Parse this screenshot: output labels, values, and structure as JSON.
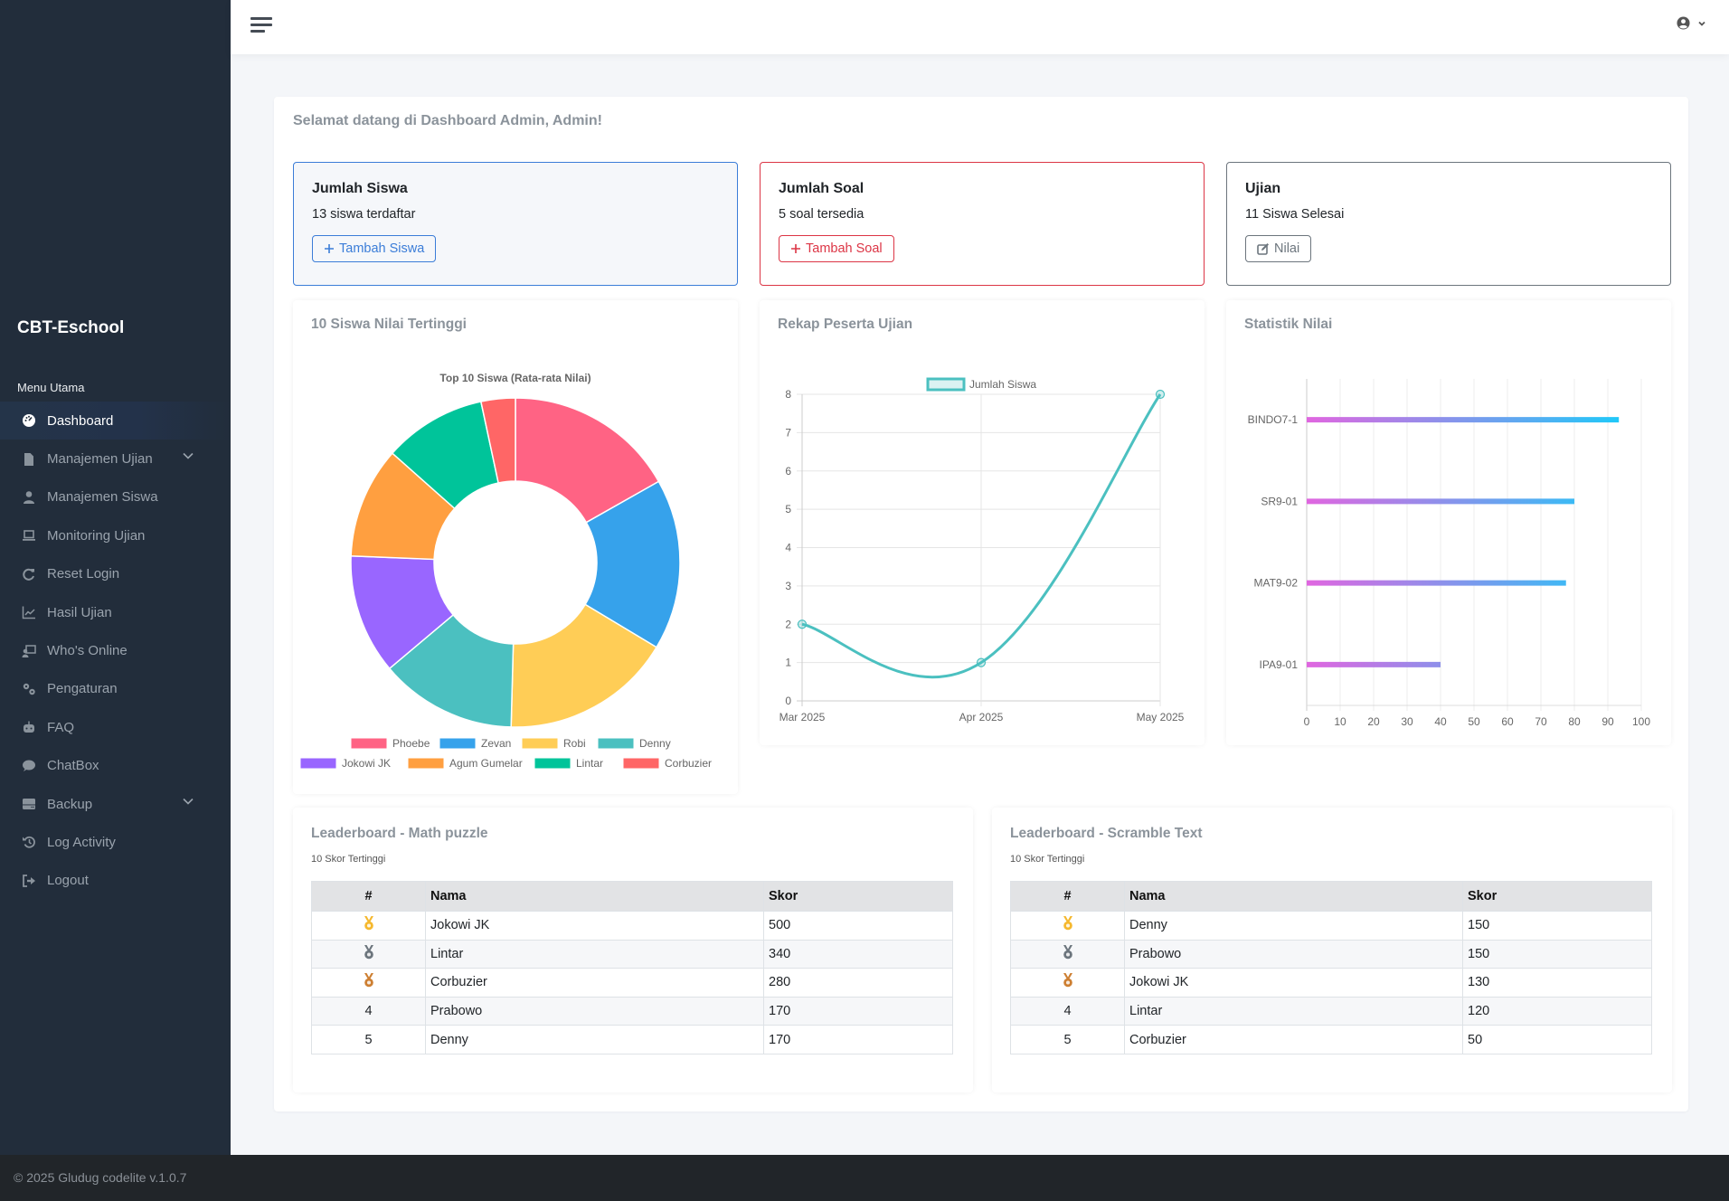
{
  "app": {
    "brand": "CBT-Eschool",
    "footer": "© 2025 Gludug codelite v.1.0.7"
  },
  "sidebar": {
    "section_title": "Menu Utama",
    "items": [
      {
        "label": "Dashboard",
        "icon": "tachometer-icon",
        "active": true
      },
      {
        "label": "Manajemen Ujian",
        "icon": "file-icon",
        "has_submenu": true
      },
      {
        "label": "Manajemen Siswa",
        "icon": "user-icon"
      },
      {
        "label": "Monitoring Ujian",
        "icon": "laptop-icon"
      },
      {
        "label": "Reset Login",
        "icon": "redo-icon"
      },
      {
        "label": "Hasil Ujian",
        "icon": "chart-line-icon"
      },
      {
        "label": "Who's Online",
        "icon": "chalkboard-user-icon"
      },
      {
        "label": "Pengaturan",
        "icon": "gears-icon"
      },
      {
        "label": "FAQ",
        "icon": "robot-icon"
      },
      {
        "label": "ChatBox",
        "icon": "comment-icon"
      },
      {
        "label": "Backup",
        "icon": "hdd-icon",
        "has_submenu": true
      },
      {
        "label": "Log Activity",
        "icon": "history-icon"
      },
      {
        "label": "Logout",
        "icon": "sign-out-icon"
      }
    ]
  },
  "topbar": {
    "menu_icon": "hamburger-icon",
    "user_icon": "user-circle-icon"
  },
  "welcome": "Selamat datang di Dashboard Admin, Admin!",
  "stats": [
    {
      "title": "Jumlah Siswa",
      "text": "13 siswa terdaftar",
      "button": "Tambah Siswa",
      "button_icon": "plus-icon",
      "color": "#3b7dd8"
    },
    {
      "title": "Jumlah Soal",
      "text": "5 soal tersedia",
      "button": "Tambah Soal",
      "button_icon": "plus-icon",
      "color": "#dc3545"
    },
    {
      "title": "Ujian",
      "text": "11 Siswa Selesai",
      "button": "Nilai",
      "button_icon": "edit-icon",
      "color": "#6c757d"
    }
  ],
  "cards": {
    "top_students": "10 Siswa Nilai Tertinggi",
    "participants": "Rekap Peserta Ujian",
    "grade_stats": "Statistik Nilai"
  },
  "chart_data": [
    {
      "type": "pie",
      "variant": "doughnut",
      "title": "Top 10 Siswa (Rata-rata Nilai)",
      "categories": [
        "Phoebe",
        "Zevan",
        "Robi",
        "Denny",
        "Jokowi JK",
        "Agum Gumelar",
        "Lintar",
        "Corbuzier"
      ],
      "values": [
        100,
        100,
        100,
        80,
        70,
        65,
        60,
        20
      ],
      "colors": [
        "#ff6384",
        "#36a2eb",
        "#ffcd56",
        "#4bc0c0",
        "#9966ff",
        "#ff9f40",
        "#00c49a",
        "#ff6666"
      ],
      "legend": "bottom"
    },
    {
      "type": "line",
      "title": "",
      "categories": [
        "Mar 2025",
        "Apr 2025",
        "May 2025"
      ],
      "series": [
        {
          "name": "Jumlah Siswa",
          "values": [
            2,
            1,
            8
          ],
          "color": "#4bc0c0"
        }
      ],
      "xlabel": "",
      "ylabel": "",
      "ylim": [
        0,
        8
      ],
      "yticks": [
        0,
        1,
        2,
        3,
        4,
        5,
        6,
        7,
        8
      ],
      "grid": true,
      "legend": "top"
    },
    {
      "type": "bar",
      "orientation": "horizontal",
      "title": "",
      "categories": [
        "BINDO7-1",
        "SR9-01",
        "MAT9-02",
        "IPA9-01"
      ],
      "values": [
        93.3,
        80,
        77.5,
        40
      ],
      "xlim": [
        0,
        100
      ],
      "xticks": [
        0,
        10,
        20,
        30,
        40,
        50,
        60,
        70,
        80,
        90,
        100
      ],
      "gradient": [
        "#e066e0",
        "#12cffa"
      ],
      "grid": true,
      "legend": "none"
    }
  ],
  "leaderboards": [
    {
      "title": "Leaderboard - Math puzzle",
      "subtitle": "10 Skor Tertinggi",
      "headers": [
        "#",
        "Nama",
        "Skor"
      ],
      "rows": [
        {
          "rank": "1",
          "medal": "gold",
          "name": "Jokowi JK",
          "score": "500"
        },
        {
          "rank": "2",
          "medal": "silver",
          "name": "Lintar",
          "score": "340"
        },
        {
          "rank": "3",
          "medal": "bronze",
          "name": "Corbuzier",
          "score": "280"
        },
        {
          "rank": "4",
          "medal": "",
          "name": "Prabowo",
          "score": "170"
        },
        {
          "rank": "5",
          "medal": "",
          "name": "Denny",
          "score": "170"
        }
      ]
    },
    {
      "title": "Leaderboard - Scramble Text",
      "subtitle": "10 Skor Tertinggi",
      "headers": [
        "#",
        "Nama",
        "Skor"
      ],
      "rows": [
        {
          "rank": "1",
          "medal": "gold",
          "name": "Denny",
          "score": "150"
        },
        {
          "rank": "2",
          "medal": "silver",
          "name": "Prabowo",
          "score": "150"
        },
        {
          "rank": "3",
          "medal": "bronze",
          "name": "Jokowi JK",
          "score": "130"
        },
        {
          "rank": "4",
          "medal": "",
          "name": "Lintar",
          "score": "120"
        },
        {
          "rank": "5",
          "medal": "",
          "name": "Corbuzier",
          "score": "50"
        }
      ]
    }
  ],
  "medal_colors": {
    "gold": "#f5b82e",
    "silver": "#6c757d",
    "bronze": "#cd7f32"
  }
}
